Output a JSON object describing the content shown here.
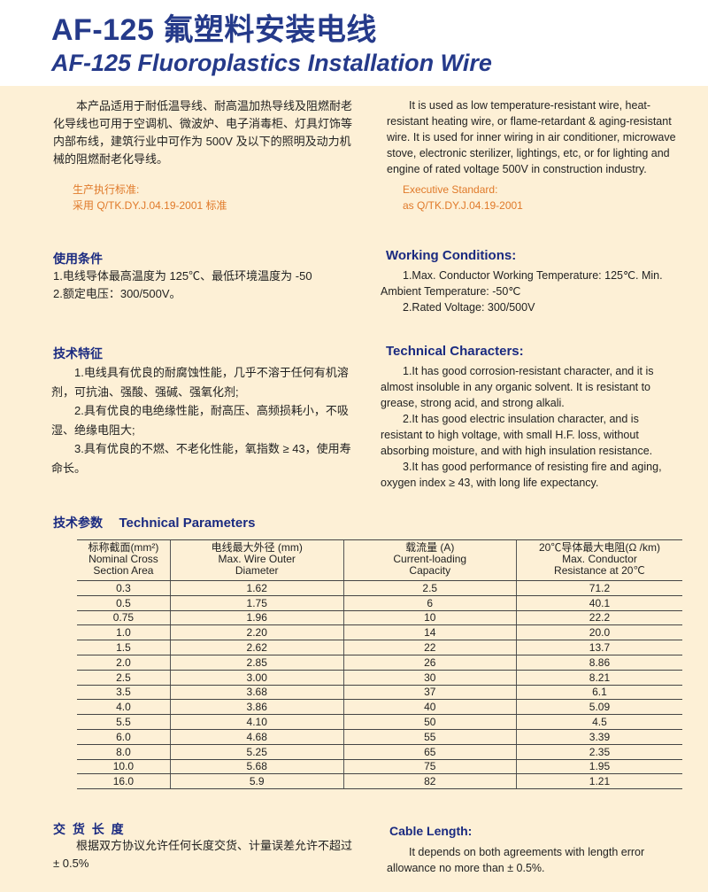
{
  "title_zh": "AF-125 氟塑料安装电线",
  "title_en": "AF-125 Fluoroplastics Installation Wire",
  "intro_zh": "本产品适用于耐低温导线、耐高温加热导线及阻燃耐老化导线也可用于空调机、微波炉、电子消毒柜、灯具灯饰等内部布线，建筑行业中可作为 500V 及以下的照明及动力机械的阻燃耐老化导线。",
  "intro_en": "It is used as low temperature-resistant wire, heat-resistant heating wire, or flame-retardant & aging-resistant wire. It is  used for inner wiring in air conditioner, microwave stove, electronic sterilizer, lightings, etc, or for lighting and engine of rated voltage 500V in construction industry.",
  "standard_zh": {
    "label": "生产执行标准:",
    "value": "采用 Q/TK.DY.J.04.19-2001 标准"
  },
  "standard_en": {
    "label": "Executive Standard:",
    "value": "as Q/TK.DY.J.04.19-2001"
  },
  "working_zh": {
    "heading": "使用条件",
    "items": [
      "1.电线导体最高温度为 125℃、最低环境温度为 -50",
      "2.额定电压：300/500V。"
    ]
  },
  "working_en": {
    "heading": "Working Conditions:",
    "items": [
      "1.Max. Conductor Working Temperature: 125℃. Min. Ambient Temperature: -50℃",
      "2.Rated Voltage: 300/500V"
    ]
  },
  "tech_zh": {
    "heading": "技术特征",
    "items": [
      "1.电线具有优良的耐腐蚀性能，几乎不溶于任何有机溶剂，可抗油、强酸、强碱、强氧化剂;",
      "2.具有优良的电绝缘性能，耐高压、高频损耗小，不吸湿、绝缘电阻大;",
      "3.具有优良的不燃、不老化性能，氧指数 ≥ 43，使用寿命长。"
    ]
  },
  "tech_en": {
    "heading": "Technical Characters:",
    "items": [
      "1.It has good corrosion-resistant character, and it is almost insoluble in any organic solvent. It is resistant to grease, strong acid, and strong alkali.",
      "2.It has good electric insulation character, and is resistant to high voltage, with small H.F. loss, without absorbing moisture, and with high insulation resistance.",
      "3.It has good performance of resisting fire and aging, oxygen index ≥ 43, with long life expectancy."
    ]
  },
  "params": {
    "heading_zh": "技术参数",
    "heading_en": "Technical Parameters",
    "columns": [
      {
        "zh": "标称截面(mm²)",
        "en1": "Nominal Cross",
        "en2": "Section Area"
      },
      {
        "zh": "电线最大外径  (mm)",
        "en1": "Max. Wire Outer",
        "en2": "Diameter"
      },
      {
        "zh": "载流量 (A)",
        "en1": "Current-loading",
        "en2": "Capacity"
      },
      {
        "zh": "20℃导体最大电阻(Ω /km)",
        "en1": "Max. Conductor",
        "en2": "Resistance at 20℃"
      }
    ],
    "rows": [
      [
        "0.3",
        "1.62",
        "2.5",
        "71.2"
      ],
      [
        "0.5",
        "1.75",
        "6",
        "40.1"
      ],
      [
        "0.75",
        "1.96",
        "10",
        "22.2"
      ],
      [
        "1.0",
        "2.20",
        "14",
        "20.0"
      ],
      [
        "1.5",
        "2.62",
        "22",
        "13.7"
      ],
      [
        "2.0",
        "2.85",
        "26",
        "8.86"
      ],
      [
        "2.5",
        "3.00",
        "30",
        "8.21"
      ],
      [
        "3.5",
        "3.68",
        "37",
        "6.1"
      ],
      [
        "4.0",
        "3.86",
        "40",
        "5.09"
      ],
      [
        "5.5",
        "4.10",
        "50",
        "4.5"
      ],
      [
        "6.0",
        "4.68",
        "55",
        "3.39"
      ],
      [
        "8.0",
        "5.25",
        "65",
        "2.35"
      ],
      [
        "10.0",
        "5.68",
        "75",
        "1.95"
      ],
      [
        "16.0",
        "5.9",
        "82",
        "1.21"
      ]
    ]
  },
  "length_zh": {
    "heading": "交 货 长 度",
    "text": "根据双方协议允许任何长度交货、计量误差允许不超过 ± 0.5%"
  },
  "length_en": {
    "heading": "Cable Length:",
    "text": "It depends on both agreements with length error allowance no more than  ± 0.5%."
  }
}
